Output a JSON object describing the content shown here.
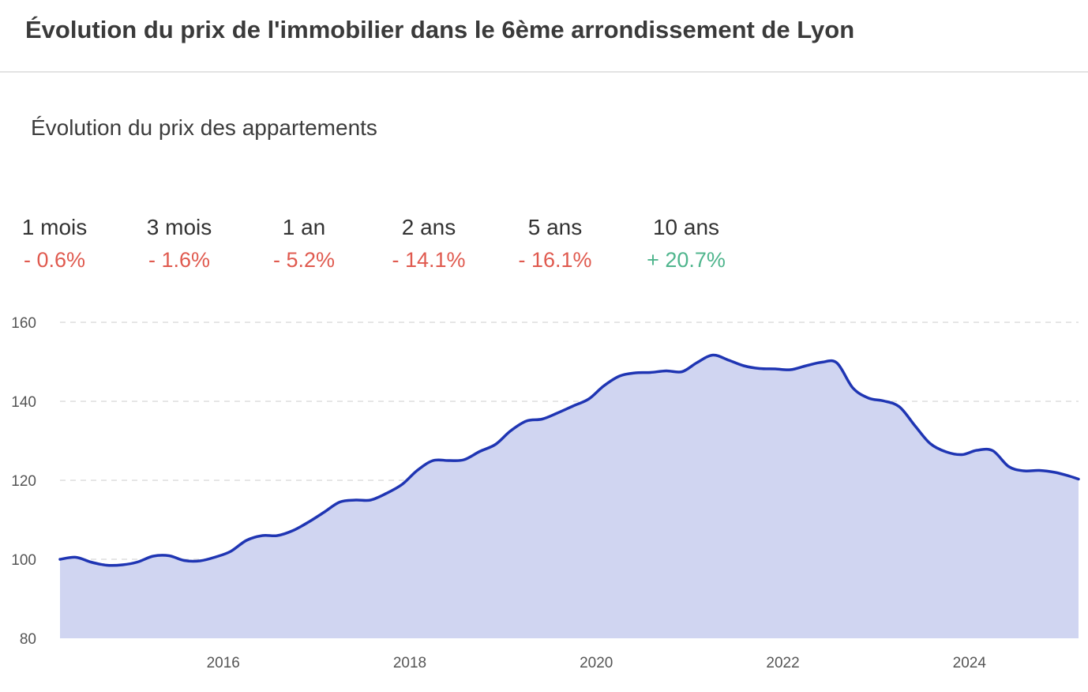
{
  "header": {
    "title": "Évolution du prix de l'immobilier dans le 6ème arrondissement de Lyon"
  },
  "section": {
    "title": "Évolution du prix des appartements"
  },
  "stats": [
    {
      "period": "1 mois",
      "change": "- 0.6%",
      "trend": "down"
    },
    {
      "period": "3 mois",
      "change": "- 1.6%",
      "trend": "down"
    },
    {
      "period": "1 an",
      "change": "- 5.2%",
      "trend": "down"
    },
    {
      "period": "2 ans",
      "change": "- 14.1%",
      "trend": "down"
    },
    {
      "period": "5 ans",
      "change": "- 16.1%",
      "trend": "down"
    },
    {
      "period": "10 ans",
      "change": "+ 20.7%",
      "trend": "up"
    }
  ],
  "colors": {
    "negative": "#e05a4f",
    "positive": "#4fb58d",
    "line": "#1f35b3",
    "area": "#d0d5f1",
    "grid": "#dddddd"
  },
  "chart_data": {
    "type": "area",
    "xlim": [
      2014.25,
      2025.17
    ],
    "ylim": [
      80,
      160
    ],
    "x_ticks": [
      2016,
      2018,
      2020,
      2022,
      2024
    ],
    "x_tick_labels": [
      "2016",
      "2018",
      "2020",
      "2022",
      "2024"
    ],
    "y_ticks": [
      80,
      100,
      120,
      140,
      160
    ],
    "y_tick_labels": [
      "80",
      "100",
      "120",
      "140",
      "160"
    ],
    "grid": "horizontal dashed",
    "series": [
      {
        "x": [
          2014.25,
          2014.42,
          2014.58,
          2014.75,
          2014.92,
          2015.08,
          2015.25,
          2015.42,
          2015.58,
          2015.75,
          2015.92,
          2016.08,
          2016.25,
          2016.42,
          2016.58,
          2016.75,
          2016.92,
          2017.08,
          2017.25,
          2017.42,
          2017.58,
          2017.75,
          2017.92,
          2018.08,
          2018.25,
          2018.42,
          2018.58,
          2018.75,
          2018.92,
          2019.08,
          2019.25,
          2019.42,
          2019.58,
          2019.75,
          2019.92,
          2020.08,
          2020.25,
          2020.42,
          2020.58,
          2020.75,
          2020.92,
          2021.08,
          2021.25,
          2021.42,
          2021.58,
          2021.75,
          2021.92,
          2022.08,
          2022.25,
          2022.42,
          2022.58,
          2022.75,
          2022.92,
          2023.08,
          2023.25,
          2023.42,
          2023.58,
          2023.75,
          2023.92,
          2024.08,
          2024.25,
          2024.42,
          2024.58,
          2024.75,
          2024.92,
          2025.08,
          2025.17
        ],
        "values": [
          100.0,
          100.5,
          99.3,
          98.5,
          98.6,
          99.3,
          100.8,
          100.9,
          99.7,
          99.6,
          100.6,
          102.0,
          104.8,
          106.0,
          106.0,
          107.3,
          109.5,
          111.9,
          114.5,
          115.0,
          115.0,
          116.7,
          119.0,
          122.5,
          125.0,
          125.0,
          125.2,
          127.3,
          129.1,
          132.5,
          135.0,
          135.5,
          137.0,
          138.8,
          140.6,
          143.9,
          146.4,
          147.2,
          147.3,
          147.7,
          147.5,
          149.8,
          151.7,
          150.4,
          149.0,
          148.3,
          148.2,
          148.0,
          149.0,
          149.9,
          149.7,
          143.4,
          140.8,
          140.1,
          138.6,
          133.7,
          129.3,
          127.2,
          126.5,
          127.6,
          127.5,
          123.5,
          122.4,
          122.5,
          122.0,
          121.0,
          120.3
        ]
      }
    ]
  }
}
